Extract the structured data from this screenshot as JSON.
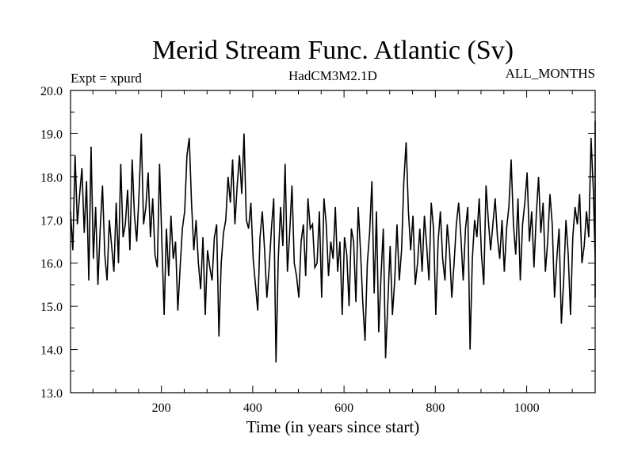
{
  "chart_data": {
    "type": "line",
    "title": "Merid Stream Func. Atlantic (Sv)",
    "left_label": "Expt = xpurd",
    "center_label": "HadCM3M2.1D",
    "right_label": "ALL_MONTHS",
    "xlabel": "Time (in years since start)",
    "ylabel": "",
    "xlim": [
      1,
      1150
    ],
    "ylim": [
      13.0,
      20.0
    ],
    "x_ticks": [
      200,
      400,
      600,
      800,
      1000
    ],
    "x_tick_labels": [
      "200",
      "400",
      "600",
      "800",
      "1000"
    ],
    "y_ticks": [
      13.0,
      14.0,
      15.0,
      16.0,
      17.0,
      18.0,
      19.0,
      20.0
    ],
    "y_tick_labels": [
      "13.0",
      "14.0",
      "15.0",
      "16.0",
      "17.0",
      "18.0",
      "19.0",
      "20.0"
    ],
    "grid": false,
    "series": [
      {
        "name": "Meridional stream function (annual, approx.)",
        "color": "#000000",
        "x_start": 1,
        "x_step": 5,
        "values": [
          17.2,
          16.3,
          18.5,
          16.9,
          17.6,
          18.2,
          16.7,
          17.9,
          15.6,
          18.7,
          16.1,
          17.3,
          15.5,
          16.8,
          17.8,
          16.2,
          15.6,
          17.0,
          16.4,
          15.8,
          17.4,
          16.0,
          18.3,
          16.6,
          16.9,
          17.7,
          16.3,
          18.4,
          17.1,
          16.5,
          17.6,
          19.0,
          16.9,
          17.3,
          18.1,
          16.6,
          17.5,
          16.2,
          15.9,
          18.3,
          16.5,
          14.8,
          16.8,
          15.7,
          17.1,
          16.1,
          16.5,
          14.9,
          15.9,
          16.8,
          17.2,
          18.5,
          18.9,
          17.4,
          16.3,
          17.0,
          16.0,
          15.4,
          16.6,
          14.8,
          16.3,
          15.9,
          15.6,
          16.6,
          16.9,
          14.3,
          16.0,
          16.7,
          17.0,
          18.0,
          17.4,
          18.4,
          16.9,
          17.8,
          18.5,
          17.6,
          19.0,
          17.0,
          16.8,
          17.4,
          16.1,
          15.5,
          14.9,
          16.6,
          17.2,
          16.3,
          15.2,
          15.9,
          16.8,
          17.5,
          13.7,
          16.1,
          17.3,
          16.4,
          18.3,
          15.8,
          16.7,
          17.8,
          16.0,
          15.7,
          15.2,
          16.5,
          16.9,
          15.7,
          17.5,
          16.8,
          16.9,
          15.9,
          16.0,
          17.2,
          15.2,
          17.5,
          16.9,
          15.7,
          16.5,
          16.1,
          17.3,
          15.8,
          16.5,
          14.8,
          16.6,
          16.2,
          15.0,
          16.8,
          16.5,
          15.1,
          17.3,
          16.3,
          15.1,
          14.2,
          16.0,
          16.7,
          17.9,
          15.3,
          17.2,
          14.4,
          15.7,
          16.8,
          13.8,
          15.1,
          16.4,
          14.8,
          15.6,
          16.9,
          15.6,
          16.3,
          17.9,
          18.8,
          17.2,
          16.3,
          17.1,
          15.5,
          16.0,
          16.8,
          15.8,
          17.1,
          16.4,
          15.6,
          17.4,
          16.8,
          14.8,
          16.5,
          17.2,
          16.1,
          15.6,
          16.9,
          16.3,
          15.2,
          16.0,
          16.9,
          17.4,
          16.6,
          15.6,
          16.8,
          17.3,
          14.0,
          16.1,
          17.0,
          16.6,
          17.5,
          16.2,
          15.5,
          17.8,
          17.0,
          16.3,
          16.9,
          17.5,
          16.6,
          16.1,
          17.0,
          15.8,
          16.8,
          17.3,
          18.4,
          16.9,
          16.2,
          17.5,
          15.6,
          16.9,
          17.4,
          18.1,
          16.5,
          17.2,
          15.9,
          17.1,
          18.0,
          16.7,
          17.4,
          15.8,
          16.5,
          17.6,
          16.9,
          15.2,
          16.1,
          16.8,
          14.6,
          15.6,
          17.0,
          16.2,
          14.8,
          16.6,
          17.3,
          16.9,
          17.6,
          16.0,
          16.4,
          17.2,
          16.6,
          18.9,
          17.7,
          16.1,
          17.1,
          16.5,
          15.9,
          17.0,
          17.4,
          17.8,
          16.9,
          18.2,
          17.6,
          17.0,
          17.4,
          16.8,
          17.9,
          17.2,
          18.5,
          17.7,
          19.3,
          17.1,
          17.9,
          16.8,
          17.5,
          17.2,
          16.3,
          15.9,
          15.2,
          16.2
        ]
      }
    ]
  }
}
